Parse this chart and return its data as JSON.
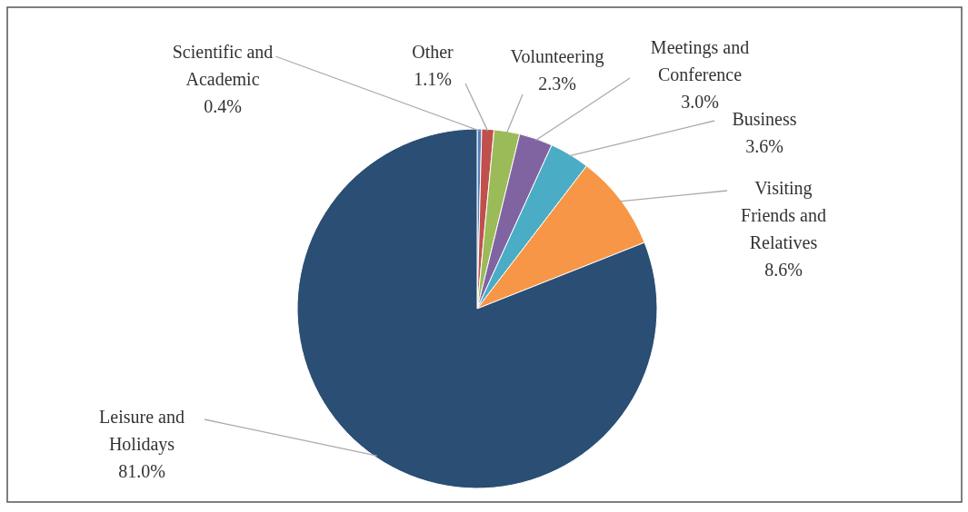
{
  "chart_data": {
    "type": "pie",
    "categories": [
      "Scientific and Academic",
      "Other",
      "Volunteering",
      "Meetings and Conference",
      "Business",
      "Visiting Friends and Relatives",
      "Leisure and Holidays"
    ],
    "values": [
      0.4,
      1.1,
      2.3,
      3.0,
      3.6,
      8.6,
      81.0
    ],
    "colors": [
      "#4f81bd",
      "#c0504d",
      "#9bbb59",
      "#8064a2",
      "#4bacc6",
      "#f79646",
      "#2a4e74"
    ],
    "value_labels": [
      "0.4%",
      "1.1%",
      "2.3%",
      "3.0%",
      "3.6%",
      "8.6%",
      "81.0%"
    ]
  }
}
